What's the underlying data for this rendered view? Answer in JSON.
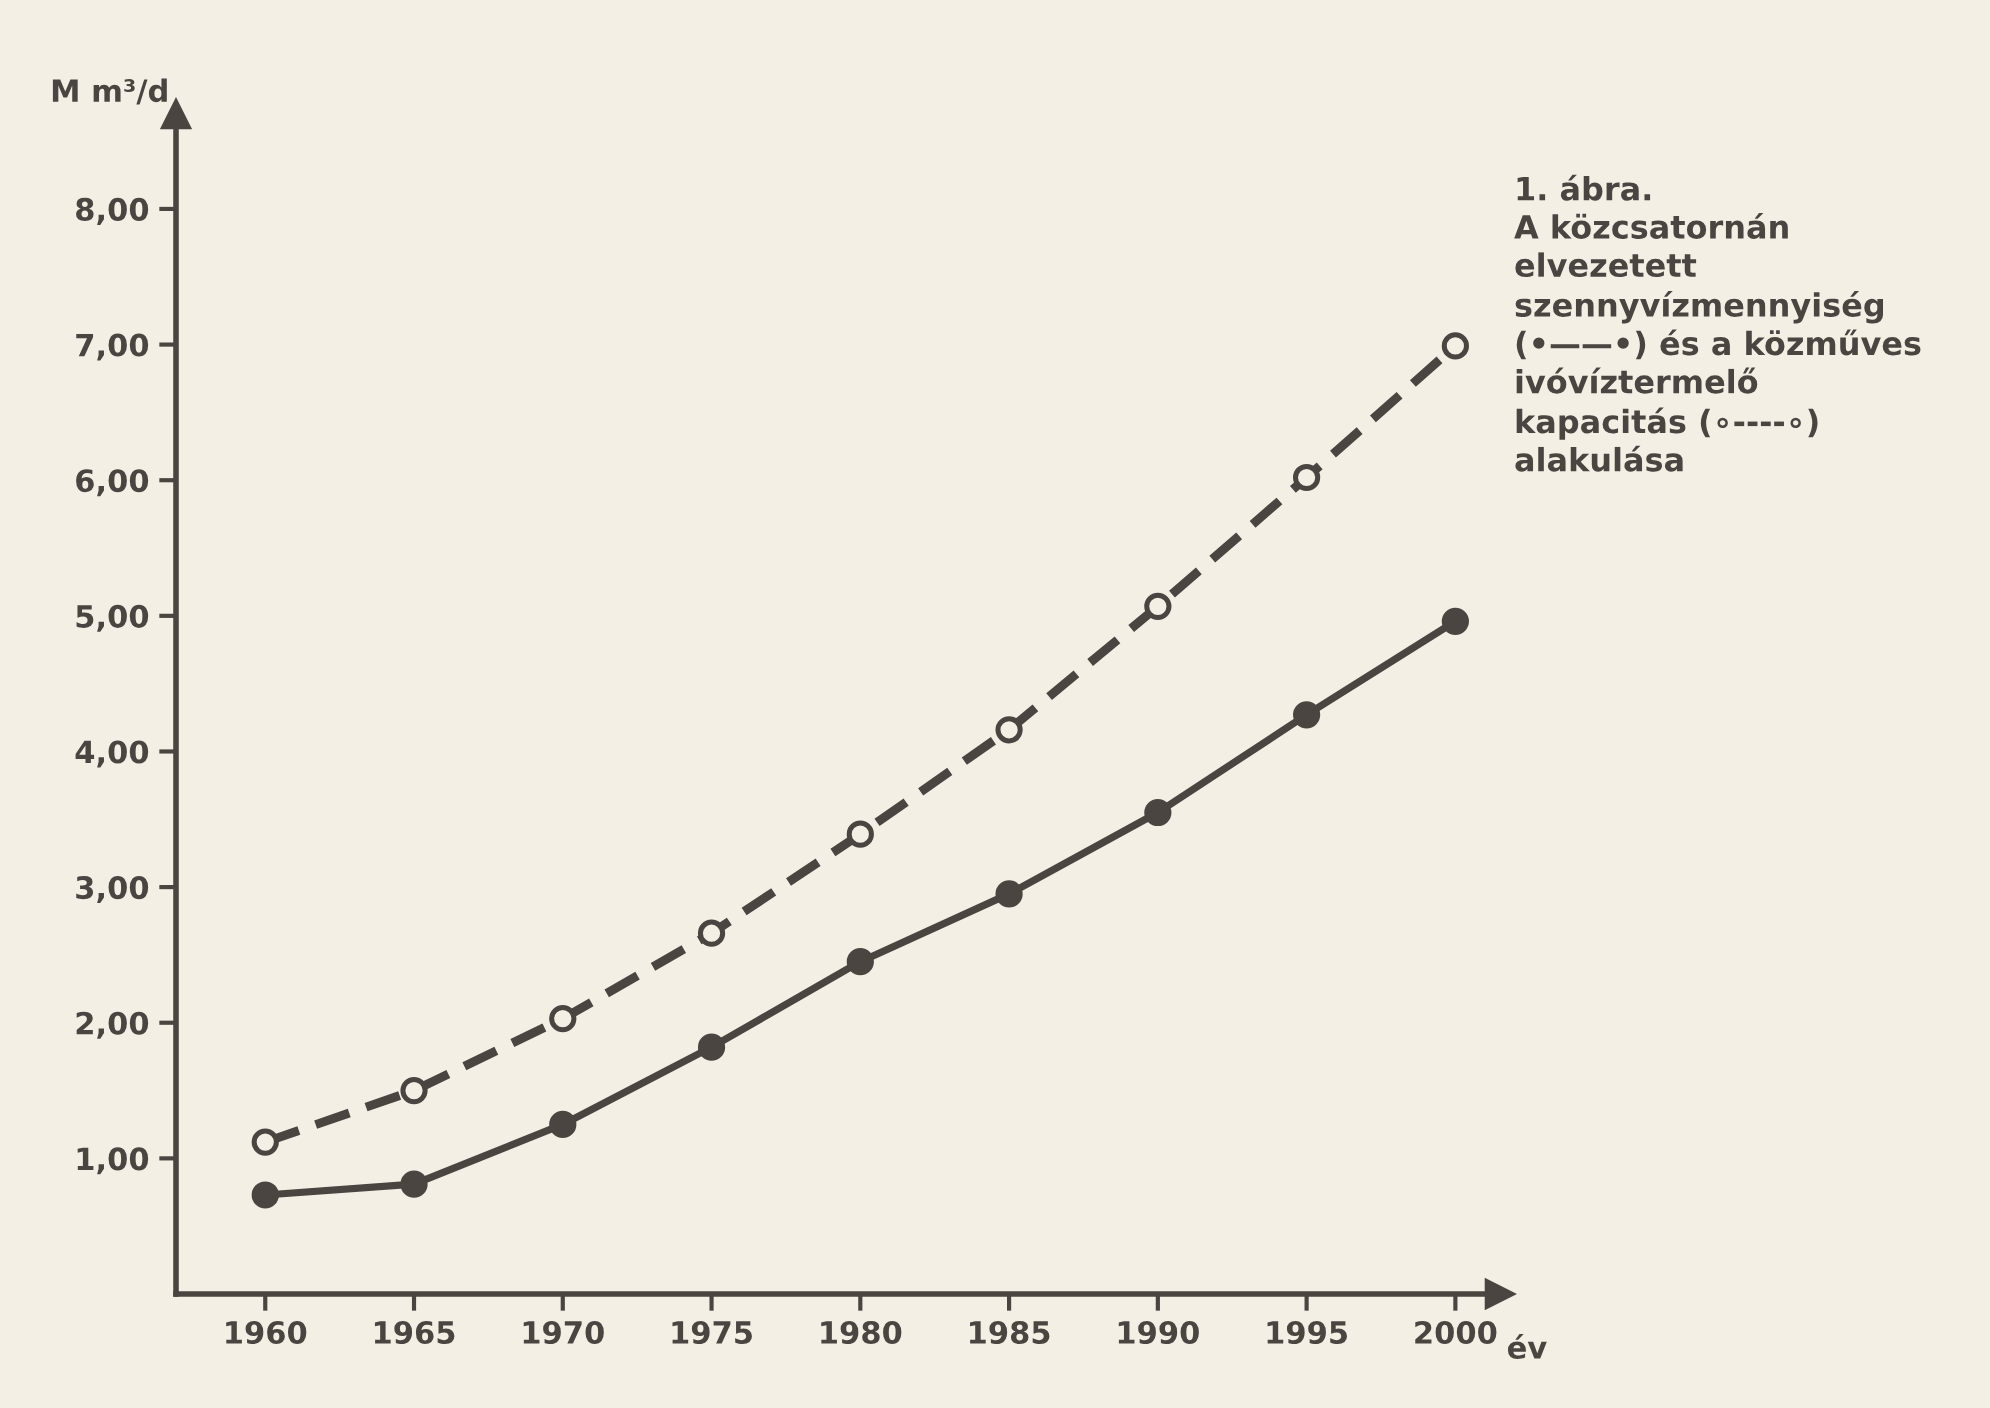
{
  "chart_data": {
    "type": "line",
    "title": "1. ábra.\nA közcsatornán\nelvezetett\nszennyvízmennyiség\n(•——•) és a közműves\nivóvíztermelő\nkapacitás (∘----∘)\nalakulása",
    "ylabel": "M m³/d",
    "xlabel": "év",
    "x": [
      1960,
      1965,
      1970,
      1975,
      1980,
      1985,
      1990,
      1995,
      2000
    ],
    "series": [
      {
        "color": "#4a4541",
        "marker": "circle",
        "line_style": "solid",
        "values": [
          0.73,
          0.81,
          1.25,
          1.82,
          2.45,
          2.95,
          3.55,
          4.27,
          4.96
        ]
      },
      {
        "color": "#4a4541",
        "marker": "circle",
        "line_style": "dashed",
        "values": [
          1.12,
          1.5,
          2.03,
          2.66,
          3.39,
          4.16,
          5.07,
          6.02,
          6.99
        ]
      }
    ],
    "xlim": [
      1957,
      2001.5
    ],
    "ylim": [
      0,
      8.7
    ],
    "xticks": [
      1960,
      1965,
      1970,
      1975,
      1980,
      1985,
      1990,
      1995,
      2000
    ],
    "yticks": [
      {
        "value": 1,
        "label": "1,00"
      },
      {
        "value": 2,
        "label": "2,00"
      },
      {
        "value": 3,
        "label": "3,00"
      },
      {
        "value": 4,
        "label": "4,00"
      },
      {
        "value": 5,
        "label": "5,00"
      },
      {
        "value": 6,
        "label": "6,00"
      },
      {
        "value": 7,
        "label": "7,00"
      },
      {
        "value": 8,
        "label": "8,00"
      }
    ],
    "grid": false,
    "legend": false
  }
}
